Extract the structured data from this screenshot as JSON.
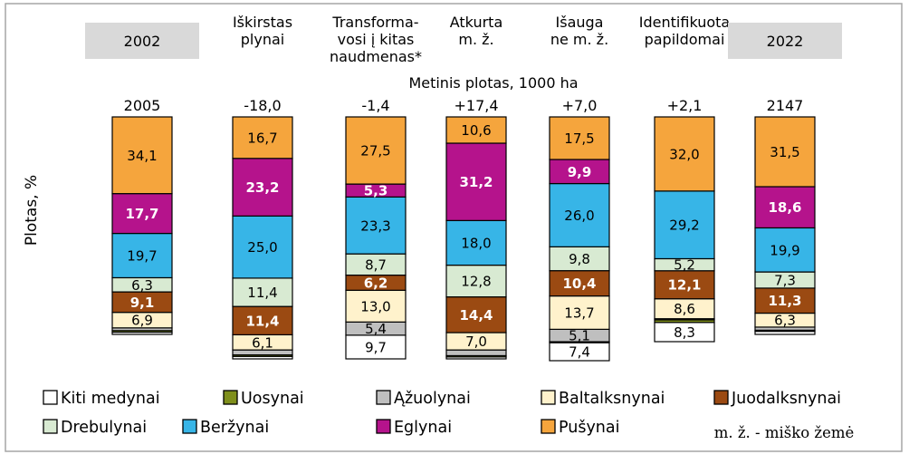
{
  "colors": {
    "frame": "#a6a6a6",
    "header_bg": "#d9d9d9",
    "outline": "#000000",
    "text_dark": "#000000",
    "text_light": "#ffffff"
  },
  "chart_data": {
    "type": "bar",
    "stacked": true,
    "ylabel": "Plotas, %",
    "ylim": [
      0,
      100
    ],
    "subtitle": "Metinis plotas, 1000 ha",
    "abbreviation_note": "m. ž. - miško žemė",
    "categories": [
      {
        "label": "2002",
        "highlight": true,
        "total": "2005"
      },
      {
        "label": "Iškirstas plynai",
        "total": "-18,0"
      },
      {
        "label": "Transforma-vosi į kitas naudmenas*",
        "total": "-1,4"
      },
      {
        "label": "Atkurta m. ž.",
        "total": "+17,4"
      },
      {
        "label": "Išauga ne m. ž.",
        "total": "+7,0"
      },
      {
        "label": "Identifikuota papildomai",
        "total": "+2,1"
      },
      {
        "label": "2022",
        "highlight": true,
        "total": "2147"
      }
    ],
    "series": [
      {
        "name": "Kiti medynai",
        "color": "#ffffff",
        "values": [
          1.0,
          1.0,
          9.7,
          0.8,
          7.4,
          8.3,
          1.4
        ],
        "labels": [
          "",
          "",
          "9,7",
          "",
          "7,4",
          "8,3",
          ""
        ],
        "label_color": "dark",
        "bold": false
      },
      {
        "name": "Uosynai",
        "color": "#7f8f1c",
        "values": [
          0.7,
          0.6,
          0.0,
          0.5,
          0.4,
          1.1,
          0.5
        ],
        "labels": [
          "",
          "",
          "",
          "",
          "",
          "",
          ""
        ],
        "label_color": "dark",
        "bold": false
      },
      {
        "name": "Ąžuolynai",
        "color": "#bfbfbf",
        "values": [
          1.2,
          2.0,
          5.4,
          2.3,
          5.1,
          0.5,
          1.4
        ],
        "labels": [
          "",
          "",
          "5,4",
          "",
          "5,1",
          "",
          ""
        ],
        "label_color": "dark",
        "bold": false
      },
      {
        "name": "Baltalksnynai",
        "color": "#fff2cc",
        "values": [
          6.9,
          6.1,
          13.0,
          7.0,
          13.7,
          8.6,
          6.3
        ],
        "labels": [
          "6,9",
          "6,1",
          "13,0",
          "7,0",
          "13,7",
          "8,6",
          "6,3"
        ],
        "label_color": "dark",
        "bold": false
      },
      {
        "name": "Juodalksnynai",
        "color": "#9b4a12",
        "values": [
          9.1,
          11.4,
          6.2,
          14.4,
          10.4,
          12.1,
          11.3
        ],
        "labels": [
          "9,1",
          "11,4",
          "6,2",
          "14,4",
          "10,4",
          "12,1",
          "11,3"
        ],
        "label_color": "light",
        "bold": true
      },
      {
        "name": "Drebulynai",
        "color": "#d8ead2",
        "values": [
          6.3,
          11.4,
          8.7,
          12.8,
          9.8,
          5.2,
          7.3
        ],
        "labels": [
          "6,3",
          "11,4",
          "8,7",
          "12,8",
          "9,8",
          "5,2",
          "7,3"
        ],
        "label_color": "dark",
        "bold": false
      },
      {
        "name": "Beržynai",
        "color": "#37b5e7",
        "values": [
          19.7,
          25.0,
          23.3,
          18.0,
          26.0,
          29.2,
          19.9
        ],
        "labels": [
          "19,7",
          "25,0",
          "23,3",
          "18,0",
          "26,0",
          "29,2",
          "19,9"
        ],
        "label_color": "dark",
        "bold": false
      },
      {
        "name": "Eglynai",
        "color": "#b5138c",
        "values": [
          17.7,
          23.2,
          5.3,
          31.2,
          9.9,
          0.0,
          18.6
        ],
        "labels": [
          "17,7",
          "23,2",
          "5,3",
          "31,2",
          "9,9",
          "",
          "18,6"
        ],
        "label_color": "light",
        "bold": true
      },
      {
        "name": "Pušynai",
        "color": "#f5a53d",
        "values": [
          34.1,
          16.7,
          27.5,
          10.6,
          17.5,
          32.0,
          31.5
        ],
        "labels": [
          "34,1",
          "16,7",
          "27,5",
          "10,6",
          "17,5",
          "32,0",
          "31,5"
        ],
        "label_color": "dark",
        "bold": false
      }
    ],
    "legend_position": "bottom"
  }
}
